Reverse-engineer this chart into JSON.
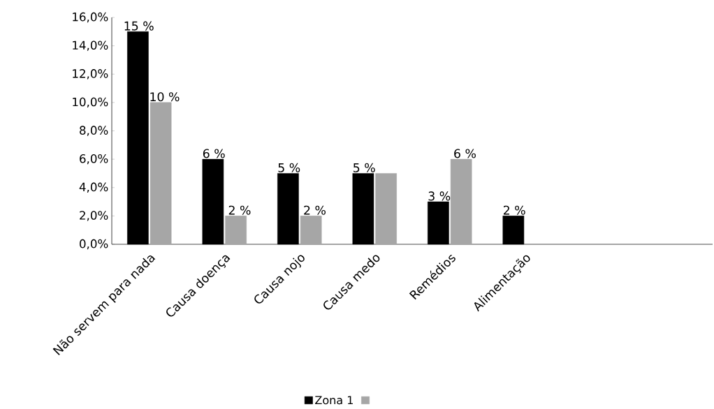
{
  "chart_data": {
    "type": "bar",
    "categories": [
      "Não servem para nada",
      "Causa doença",
      "Causa nojo",
      "Causa medo",
      "Remédios",
      "Alimentação",
      null,
      null
    ],
    "series": [
      {
        "name": "Zona 1",
        "color": "#000000",
        "values": [
          15,
          6,
          5,
          5,
          3,
          2,
          null,
          null
        ],
        "value_labels": [
          "15 %",
          "6 %",
          "5 %",
          "5 %",
          "3 %",
          "2 %",
          null,
          null
        ]
      },
      {
        "color": "#a6a6a6",
        "values": [
          10,
          2,
          2,
          5,
          6,
          null,
          null,
          null
        ],
        "value_labels": [
          "10 %",
          "2 %",
          "2 %",
          null,
          "6 %",
          null,
          null,
          null
        ]
      }
    ],
    "ylim": [
      0,
      16
    ],
    "yticks": [
      {
        "value": 0,
        "label": "0,0%"
      },
      {
        "value": 2,
        "label": "2,0%"
      },
      {
        "value": 4,
        "label": "4,0%"
      },
      {
        "value": 6,
        "label": "6,0%"
      },
      {
        "value": 8,
        "label": "8,0%"
      },
      {
        "value": 10,
        "label": "10,0%"
      },
      {
        "value": 12,
        "label": "12,0%"
      },
      {
        "value": 14,
        "label": "14,0%"
      },
      {
        "value": 16,
        "label": "16,0%"
      }
    ],
    "grid": false,
    "legend": "bottom"
  }
}
